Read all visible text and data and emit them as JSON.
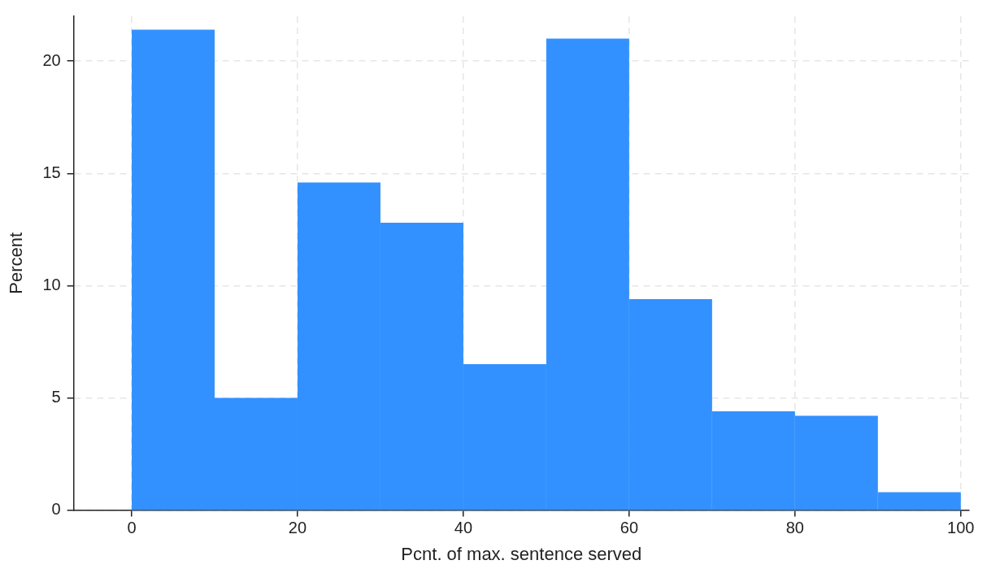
{
  "chart_data": {
    "type": "histogram",
    "xlabel": "Pcnt. of max. sentence served",
    "ylabel": "Percent",
    "bins": [
      0,
      10,
      20,
      30,
      40,
      50,
      60,
      70,
      80,
      90,
      100
    ],
    "values": [
      21.4,
      5.0,
      14.6,
      12.8,
      6.5,
      21.0,
      9.4,
      4.4,
      4.2,
      0.8
    ],
    "color": "#3391ff",
    "xlim": [
      -7,
      101
    ],
    "ylim": [
      0,
      22
    ],
    "xticks": [
      0,
      20,
      40,
      60,
      80,
      100
    ],
    "yticks": [
      0,
      5,
      10,
      15,
      20
    ],
    "grid": true
  }
}
